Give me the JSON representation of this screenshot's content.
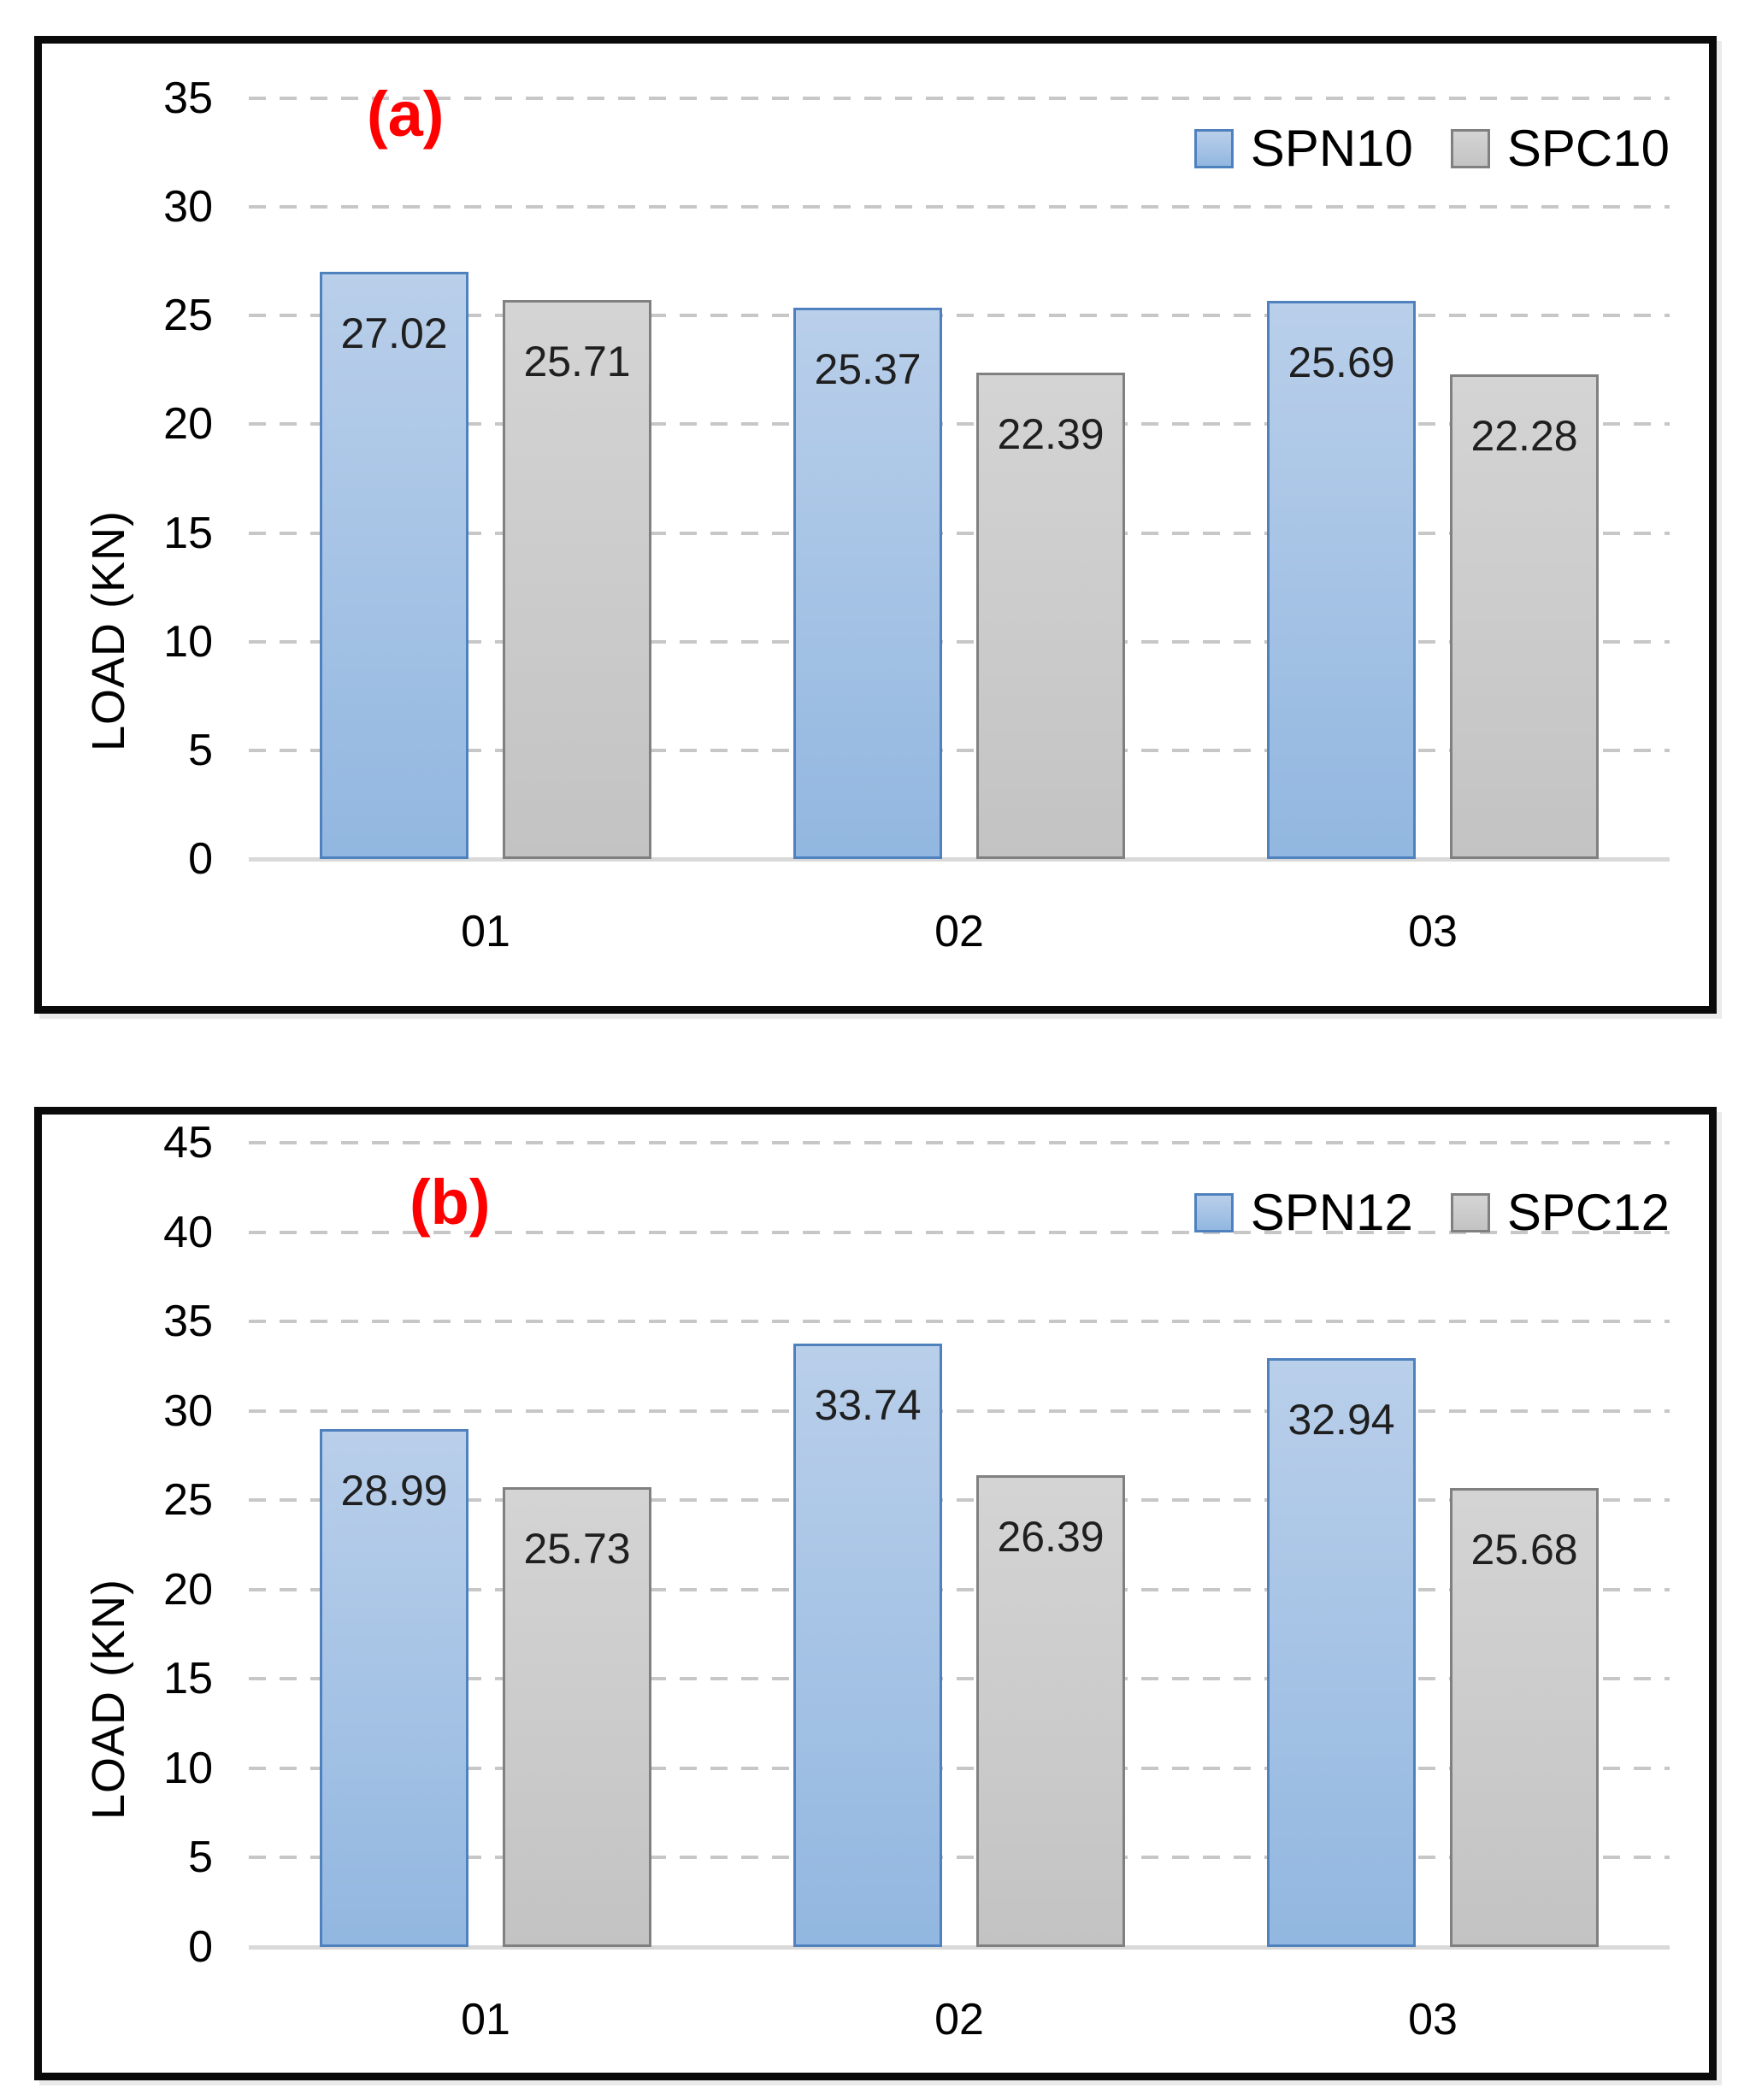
{
  "page": {
    "background": "#ffffff"
  },
  "colors": {
    "panel_border": "#0a0a0a",
    "grid_dash": "#c7c7c7",
    "zero_axis_line": "#d9d9d9",
    "panel_tag_red": "#ff0000",
    "data_label_text": "#1f1f1f"
  },
  "chart_data": [
    {
      "type": "bar",
      "panel_tag": "(a)",
      "ylabel": "LOAD (KN)",
      "xlabel": "",
      "categories": [
        "01",
        "02",
        "03"
      ],
      "series": [
        {
          "name": "SPN10",
          "values": [
            27.02,
            25.37,
            25.69
          ],
          "fill_top": "#b9cfea",
          "fill_bottom": "#92b7e0",
          "border": "#4e81bd"
        },
        {
          "name": "SPC10",
          "values": [
            25.71,
            22.39,
            22.28
          ],
          "fill_top": "#d4d4d4",
          "fill_bottom": "#c3c3c3",
          "border": "#808080"
        }
      ],
      "ylim": [
        0,
        35
      ],
      "yticks": [
        35,
        30,
        25,
        20,
        15,
        10,
        5,
        0
      ],
      "grid": "dashed horizontal",
      "data_labels": "inside end",
      "legend_position": "top-right"
    },
    {
      "type": "bar",
      "panel_tag": "(b)",
      "ylabel": "LOAD (KN)",
      "xlabel": "",
      "categories": [
        "01",
        "02",
        "03"
      ],
      "series": [
        {
          "name": "SPN12",
          "values": [
            28.99,
            33.74,
            32.94
          ],
          "fill_top": "#b9cfea",
          "fill_bottom": "#92b7e0",
          "border": "#4e81bd"
        },
        {
          "name": "SPC12",
          "values": [
            25.73,
            26.39,
            25.68
          ],
          "fill_top": "#d4d4d4",
          "fill_bottom": "#c3c3c3",
          "border": "#808080"
        }
      ],
      "ylim": [
        0,
        45
      ],
      "yticks": [
        45,
        40,
        35,
        30,
        25,
        20,
        15,
        10,
        5,
        0
      ],
      "grid": "dashed horizontal",
      "data_labels": "inside end",
      "legend_position": "top-right"
    }
  ]
}
